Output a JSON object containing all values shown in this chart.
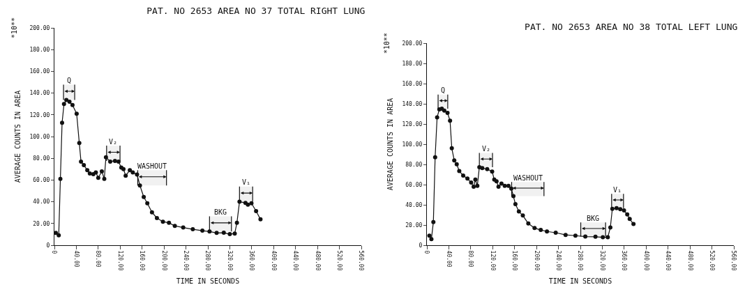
{
  "chart_data": [
    {
      "type": "line",
      "title": "PAT. NO 2653 AREA NO 37 TOTAL RIGHT LUNG",
      "xlabel": "TIME IN SECONDS",
      "ylabel": "AVERAGE COUNTS IN AREA",
      "annotations": [
        "*10**"
      ],
      "marker": "circle",
      "grid": false,
      "x": [
        2.6,
        7.9,
        10.9,
        14,
        17.5,
        21.8,
        27.5,
        33,
        40.6,
        45.4,
        48.5,
        53.7,
        60,
        64.6,
        71,
        75.6,
        80,
        86.5,
        91,
        94,
        101.8,
        110.5,
        117,
        122,
        126,
        130,
        137.6,
        143,
        150.7,
        156,
        163,
        169.5,
        178,
        187,
        198,
        209,
        219.7,
        235,
        252.5,
        270,
        283,
        296,
        309,
        320,
        329,
        333,
        337.7,
        348.6,
        353,
        359.5,
        368,
        376
      ],
      "series": [
        {
          "color": "#111111",
          "values": [
            11.3,
            9.1,
            61,
            112.7,
            130,
            133.7,
            132,
            129,
            121,
            94,
            77,
            73.7,
            69,
            66,
            65.4,
            67,
            62,
            68,
            61,
            81,
            77,
            77.6,
            77,
            71.5,
            70,
            64,
            69,
            67,
            65,
            55,
            44.4,
            38.6,
            30.3,
            25,
            21.7,
            20.6,
            17.8,
            16.3,
            14.7,
            13.4,
            12.6,
            11.3,
            11.5,
            10.2,
            10.8,
            20.6,
            40,
            39,
            37.3,
            38.6,
            31.4,
            23.8
          ]
        }
      ],
      "xlim": [
        0,
        560
      ],
      "xticks": [
        {
          "value": 0,
          "label": "0"
        },
        {
          "value": 40,
          "label": "40.00"
        },
        {
          "value": 80,
          "label": "80.00"
        },
        {
          "value": 120,
          "label": "120.00"
        },
        {
          "value": 160,
          "label": "160.00"
        },
        {
          "value": 200,
          "label": "200.00"
        },
        {
          "value": 240,
          "label": "240.00"
        },
        {
          "value": 280,
          "label": "280.00"
        },
        {
          "value": 320,
          "label": "320.00"
        },
        {
          "value": 360,
          "label": "360.00"
        },
        {
          "value": 400,
          "label": "400.00"
        },
        {
          "value": 440,
          "label": "440.00"
        },
        {
          "value": 480,
          "label": "480.00"
        },
        {
          "value": 520,
          "label": "520.00"
        },
        {
          "value": 560,
          "label": "560.00"
        }
      ],
      "ylim": [
        0,
        200
      ],
      "yticks": [
        {
          "value": 0,
          "label": "0"
        },
        {
          "value": 20,
          "label": "20.00"
        },
        {
          "value": 40,
          "label": "40.00"
        },
        {
          "value": 60,
          "label": "60.00"
        },
        {
          "value": 80,
          "label": "80.00"
        },
        {
          "value": 100,
          "label": "100.00"
        },
        {
          "value": 120,
          "label": "120.00"
        },
        {
          "value": 140,
          "label": "140.00"
        },
        {
          "value": 160,
          "label": "160.00"
        },
        {
          "value": 180,
          "label": "180.00"
        },
        {
          "value": 200,
          "label": "200.00"
        }
      ],
      "bands": [
        {
          "axis": "x",
          "from": 16.6,
          "to": 37,
          "label": "Q"
        },
        {
          "axis": "x",
          "from": 95.2,
          "to": 119.7,
          "label": "V₂"
        },
        {
          "axis": "x",
          "from": 152,
          "to": 204.5,
          "label": "WASHOUT"
        },
        {
          "axis": "x",
          "from": 283,
          "to": 323,
          "label": "BKG"
        },
        {
          "axis": "x",
          "from": 337.7,
          "to": 361.7,
          "label": "V₁"
        }
      ]
    },
    {
      "type": "line",
      "title": "PAT. NO 2653 AREA NO 38 TOTAL LEFT LUNG",
      "xlabel": "TIME IN SECONDS",
      "ylabel": "AVERAGE COUNTS IN AREA",
      "annotations": [
        "*10**"
      ],
      "marker": "circle",
      "grid": false,
      "x": [
        4.5,
        8.2,
        11.8,
        15,
        18.6,
        22.7,
        27.2,
        31.7,
        37.6,
        42.2,
        45.4,
        49.9,
        54.4,
        59,
        66.2,
        73.9,
        80.7,
        85.3,
        88.4,
        92,
        95.7,
        101,
        110,
        119,
        122.9,
        127,
        130.6,
        136,
        142,
        148.8,
        154,
        157.8,
        161.5,
        167.8,
        175,
        185,
        196.4,
        207.7,
        219,
        235,
        253,
        271,
        289,
        307.5,
        321,
        330,
        334.7,
        338.3,
        346,
        352.8,
        359.6,
        365.5,
        370,
        376.9
      ],
      "series": [
        {
          "color": "#111111",
          "values": [
            9.5,
            6.1,
            23,
            87,
            126.6,
            134.5,
            135.1,
            133.3,
            131,
            123.2,
            96,
            84,
            80.2,
            73.4,
            69,
            66,
            62,
            58,
            65,
            58.8,
            77.3,
            76.4,
            75.3,
            73,
            65,
            63.3,
            58,
            61,
            58.8,
            58.8,
            56,
            48.6,
            40.7,
            33.4,
            29.4,
            21.5,
            17,
            15.1,
            13.6,
            12.4,
            10.2,
            9.5,
            8.6,
            8.4,
            7.9,
            7.9,
            17.6,
            36,
            36.8,
            35.7,
            34.4,
            30.5,
            26,
            21
          ]
        }
      ],
      "xlim": [
        0,
        560
      ],
      "xticks": [
        {
          "value": 0,
          "label": "0"
        },
        {
          "value": 40,
          "label": "40.00"
        },
        {
          "value": 80,
          "label": "80.00"
        },
        {
          "value": 120,
          "label": "120.00"
        },
        {
          "value": 160,
          "label": "160.00"
        },
        {
          "value": 200,
          "label": "200.00"
        },
        {
          "value": 240,
          "label": "240.00"
        },
        {
          "value": 280,
          "label": "280.00"
        },
        {
          "value": 320,
          "label": "320.00"
        },
        {
          "value": 360,
          "label": "360.00"
        },
        {
          "value": 400,
          "label": "400.00"
        },
        {
          "value": 440,
          "label": "440.00"
        },
        {
          "value": 480,
          "label": "480.00"
        },
        {
          "value": 520,
          "label": "520.00"
        },
        {
          "value": 560,
          "label": "560.00"
        }
      ],
      "ylim": [
        0,
        200
      ],
      "yticks": [
        {
          "value": 0,
          "label": "0"
        },
        {
          "value": 20,
          "label": "20.00"
        },
        {
          "value": 40,
          "label": "40.00"
        },
        {
          "value": 60,
          "label": "60.00"
        },
        {
          "value": 80,
          "label": "80.00"
        },
        {
          "value": 100,
          "label": "100.00"
        },
        {
          "value": 120,
          "label": "120.00"
        },
        {
          "value": 140,
          "label": "140.00"
        },
        {
          "value": 160,
          "label": "160.00"
        },
        {
          "value": 180,
          "label": "180.00"
        },
        {
          "value": 200,
          "label": "200.00"
        }
      ],
      "bands": [
        {
          "axis": "x",
          "from": 20.4,
          "to": 38,
          "label": "Q"
        },
        {
          "axis": "x",
          "from": 95.7,
          "to": 119.7,
          "label": "V₂"
        },
        {
          "axis": "x",
          "from": 154.6,
          "to": 213.6,
          "label": "WASHOUT"
        },
        {
          "axis": "x",
          "from": 280.7,
          "to": 326,
          "label": "BKG"
        },
        {
          "axis": "x",
          "from": 337,
          "to": 358.7,
          "label": "V₁"
        }
      ]
    }
  ]
}
